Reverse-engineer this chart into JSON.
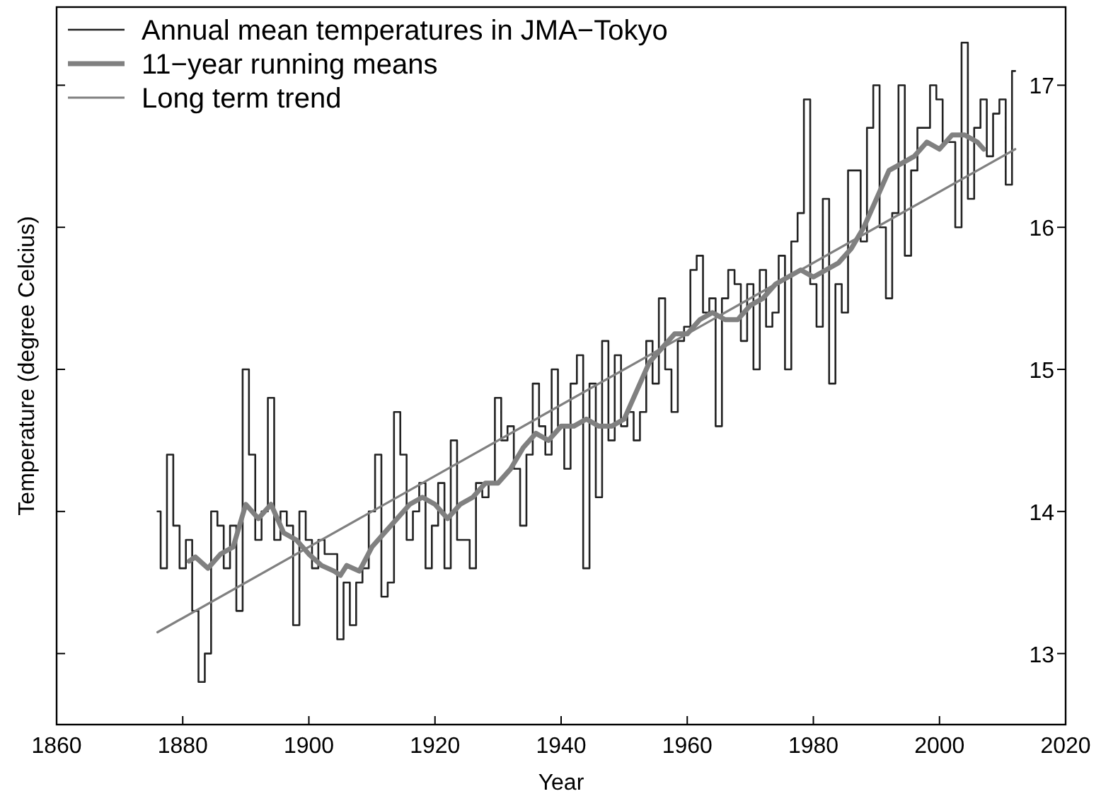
{
  "chart_data": {
    "type": "line",
    "xlabel": "Year",
    "ylabel": "Temperature (degree Celcius)",
    "xlim": [
      1860,
      2020
    ],
    "xticks": [
      1860,
      1880,
      1900,
      1920,
      1940,
      1960,
      1980,
      2000,
      2020
    ],
    "ylim": [
      12.5,
      17.55
    ],
    "yticks": [
      13,
      14,
      15,
      16,
      17
    ],
    "grid": false,
    "legend": "top left",
    "marker": "none",
    "line_style": "solid",
    "series": [
      {
        "name": "Annual mean temperatures in JMA−Tokyo",
        "type": "step",
        "color": "#222222",
        "x": [
          1876,
          1877,
          1878,
          1879,
          1880,
          1881,
          1882,
          1883,
          1884,
          1885,
          1886,
          1887,
          1888,
          1889,
          1890,
          1891,
          1892,
          1893,
          1894,
          1895,
          1896,
          1897,
          1898,
          1899,
          1900,
          1901,
          1902,
          1903,
          1904,
          1905,
          1906,
          1907,
          1908,
          1909,
          1910,
          1911,
          1912,
          1913,
          1914,
          1915,
          1916,
          1917,
          1918,
          1919,
          1920,
          1921,
          1922,
          1923,
          1924,
          1925,
          1926,
          1927,
          1928,
          1929,
          1930,
          1931,
          1932,
          1933,
          1934,
          1935,
          1936,
          1937,
          1938,
          1939,
          1940,
          1941,
          1942,
          1943,
          1944,
          1945,
          1946,
          1947,
          1948,
          1949,
          1950,
          1951,
          1952,
          1953,
          1954,
          1955,
          1956,
          1957,
          1958,
          1959,
          1960,
          1961,
          1962,
          1963,
          1964,
          1965,
          1966,
          1967,
          1968,
          1969,
          1970,
          1971,
          1972,
          1973,
          1974,
          1975,
          1976,
          1977,
          1978,
          1979,
          1980,
          1981,
          1982,
          1983,
          1984,
          1985,
          1986,
          1987,
          1988,
          1989,
          1990,
          1991,
          1992,
          1993,
          1994,
          1995,
          1996,
          1997,
          1998,
          1999,
          2000,
          2001,
          2002,
          2003,
          2004,
          2005,
          2006,
          2007,
          2008,
          2009,
          2010,
          2011,
          2012
        ],
        "values": [
          14.0,
          13.6,
          14.4,
          13.9,
          13.6,
          13.8,
          13.3,
          12.8,
          13.0,
          14.0,
          13.9,
          13.6,
          13.9,
          13.3,
          15.0,
          14.4,
          13.8,
          14.0,
          14.8,
          13.8,
          14.0,
          13.9,
          13.2,
          14.0,
          13.8,
          13.6,
          13.8,
          13.7,
          13.7,
          13.1,
          13.5,
          13.2,
          13.5,
          13.6,
          14.0,
          14.4,
          13.4,
          13.5,
          14.7,
          14.4,
          13.8,
          14.0,
          14.2,
          13.6,
          13.9,
          14.2,
          13.6,
          14.5,
          13.8,
          13.8,
          13.6,
          14.2,
          14.1,
          14.2,
          14.8,
          14.5,
          14.6,
          14.3,
          13.9,
          14.4,
          14.9,
          14.6,
          14.4,
          15.0,
          14.6,
          14.3,
          14.9,
          15.1,
          13.6,
          14.9,
          14.1,
          15.2,
          14.5,
          15.1,
          14.6,
          14.7,
          14.5,
          14.7,
          15.2,
          14.9,
          15.5,
          15.0,
          14.7,
          15.2,
          15.3,
          15.7,
          15.8,
          15.4,
          15.5,
          14.6,
          15.5,
          15.7,
          15.6,
          15.2,
          15.6,
          15.0,
          15.7,
          15.3,
          15.4,
          15.8,
          15.0,
          15.9,
          16.1,
          16.9,
          15.6,
          15.3,
          16.2,
          14.9,
          15.6,
          15.4,
          16.4,
          16.4,
          15.9,
          16.7,
          17.0,
          16.0,
          15.5,
          16.1,
          17.0,
          15.8,
          16.4,
          16.7,
          16.7,
          17.0,
          16.9,
          16.6,
          16.6,
          16.0,
          17.3,
          16.2,
          16.7,
          16.9,
          16.5,
          16.8,
          16.9,
          16.3,
          17.1
        ]
      },
      {
        "name": "11−year running means",
        "type": "line",
        "color": "#808080",
        "x": [
          1881,
          1882,
          1884,
          1886,
          1888,
          1890,
          1892,
          1894,
          1896,
          1898,
          1900,
          1902,
          1904,
          1905,
          1906,
          1908,
          1910,
          1912,
          1914,
          1916,
          1918,
          1920,
          1922,
          1924,
          1926,
          1928,
          1930,
          1932,
          1934,
          1936,
          1938,
          1940,
          1942,
          1944,
          1946,
          1948,
          1950,
          1952,
          1954,
          1956,
          1958,
          1960,
          1962,
          1964,
          1966,
          1968,
          1970,
          1972,
          1974,
          1976,
          1978,
          1980,
          1982,
          1984,
          1986,
          1988,
          1990,
          1992,
          1994,
          1996,
          1998,
          2000,
          2002,
          2004,
          2006,
          2007
        ],
        "values": [
          13.65,
          13.68,
          13.6,
          13.7,
          13.75,
          14.05,
          13.95,
          14.05,
          13.85,
          13.8,
          13.7,
          13.62,
          13.58,
          13.55,
          13.62,
          13.58,
          13.75,
          13.85,
          13.95,
          14.05,
          14.1,
          14.05,
          13.95,
          14.05,
          14.1,
          14.2,
          14.2,
          14.3,
          14.45,
          14.55,
          14.5,
          14.6,
          14.6,
          14.65,
          14.6,
          14.6,
          14.65,
          14.85,
          15.05,
          15.15,
          15.25,
          15.25,
          15.35,
          15.4,
          15.35,
          15.35,
          15.45,
          15.5,
          15.6,
          15.65,
          15.7,
          15.65,
          15.7,
          15.75,
          15.85,
          16.0,
          16.2,
          16.4,
          16.45,
          16.5,
          16.6,
          16.55,
          16.65,
          16.65,
          16.6,
          16.55
        ]
      },
      {
        "name": "Long term trend",
        "type": "line",
        "color": "#808080",
        "x": [
          1876,
          2012
        ],
        "values": [
          13.15,
          16.55
        ]
      }
    ]
  }
}
